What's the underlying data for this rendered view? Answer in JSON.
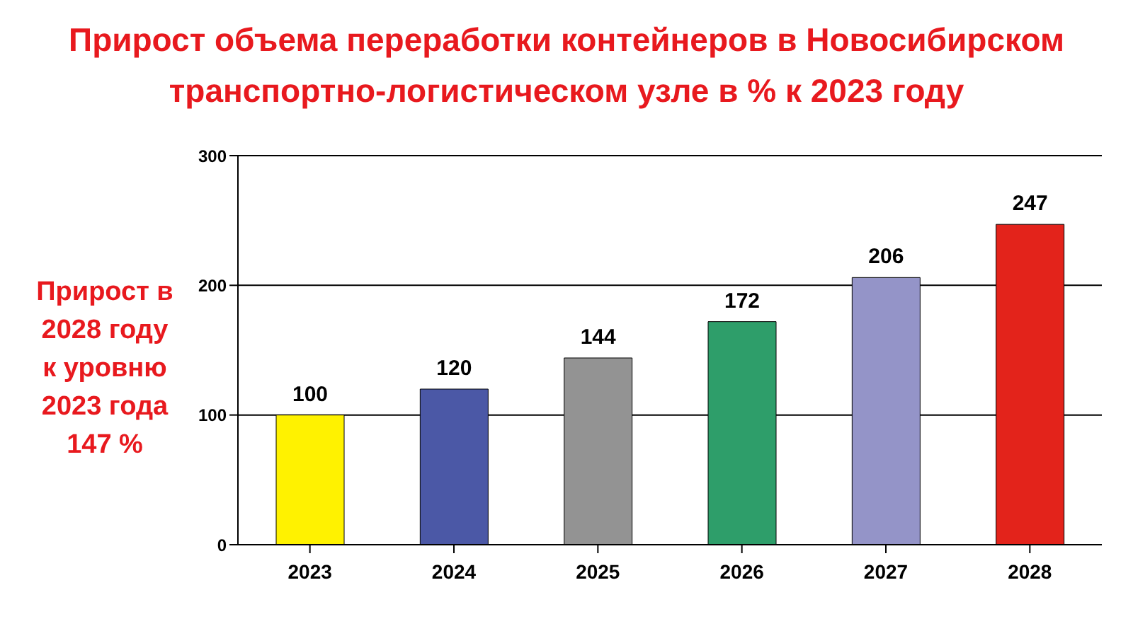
{
  "chart_data": {
    "type": "bar",
    "title": "Прирост объема переработки контейнеров в Новосибирском транспортно-логистическом узле в % к 2023 году",
    "categories": [
      "2023",
      "2024",
      "2025",
      "2026",
      "2027",
      "2028"
    ],
    "values": [
      100,
      120,
      144,
      172,
      206,
      247
    ],
    "colors": [
      "#fff200",
      "#4b58a6",
      "#939393",
      "#2e9e6a",
      "#9494c8",
      "#e3231b"
    ],
    "ylim": [
      0,
      300
    ],
    "yticks": [
      0,
      100,
      200,
      300
    ],
    "grid": "y",
    "data_labels": true,
    "annotations": [
      "Прирост в\n2028 году\nк уровню\n2023 года\n147 %"
    ]
  }
}
